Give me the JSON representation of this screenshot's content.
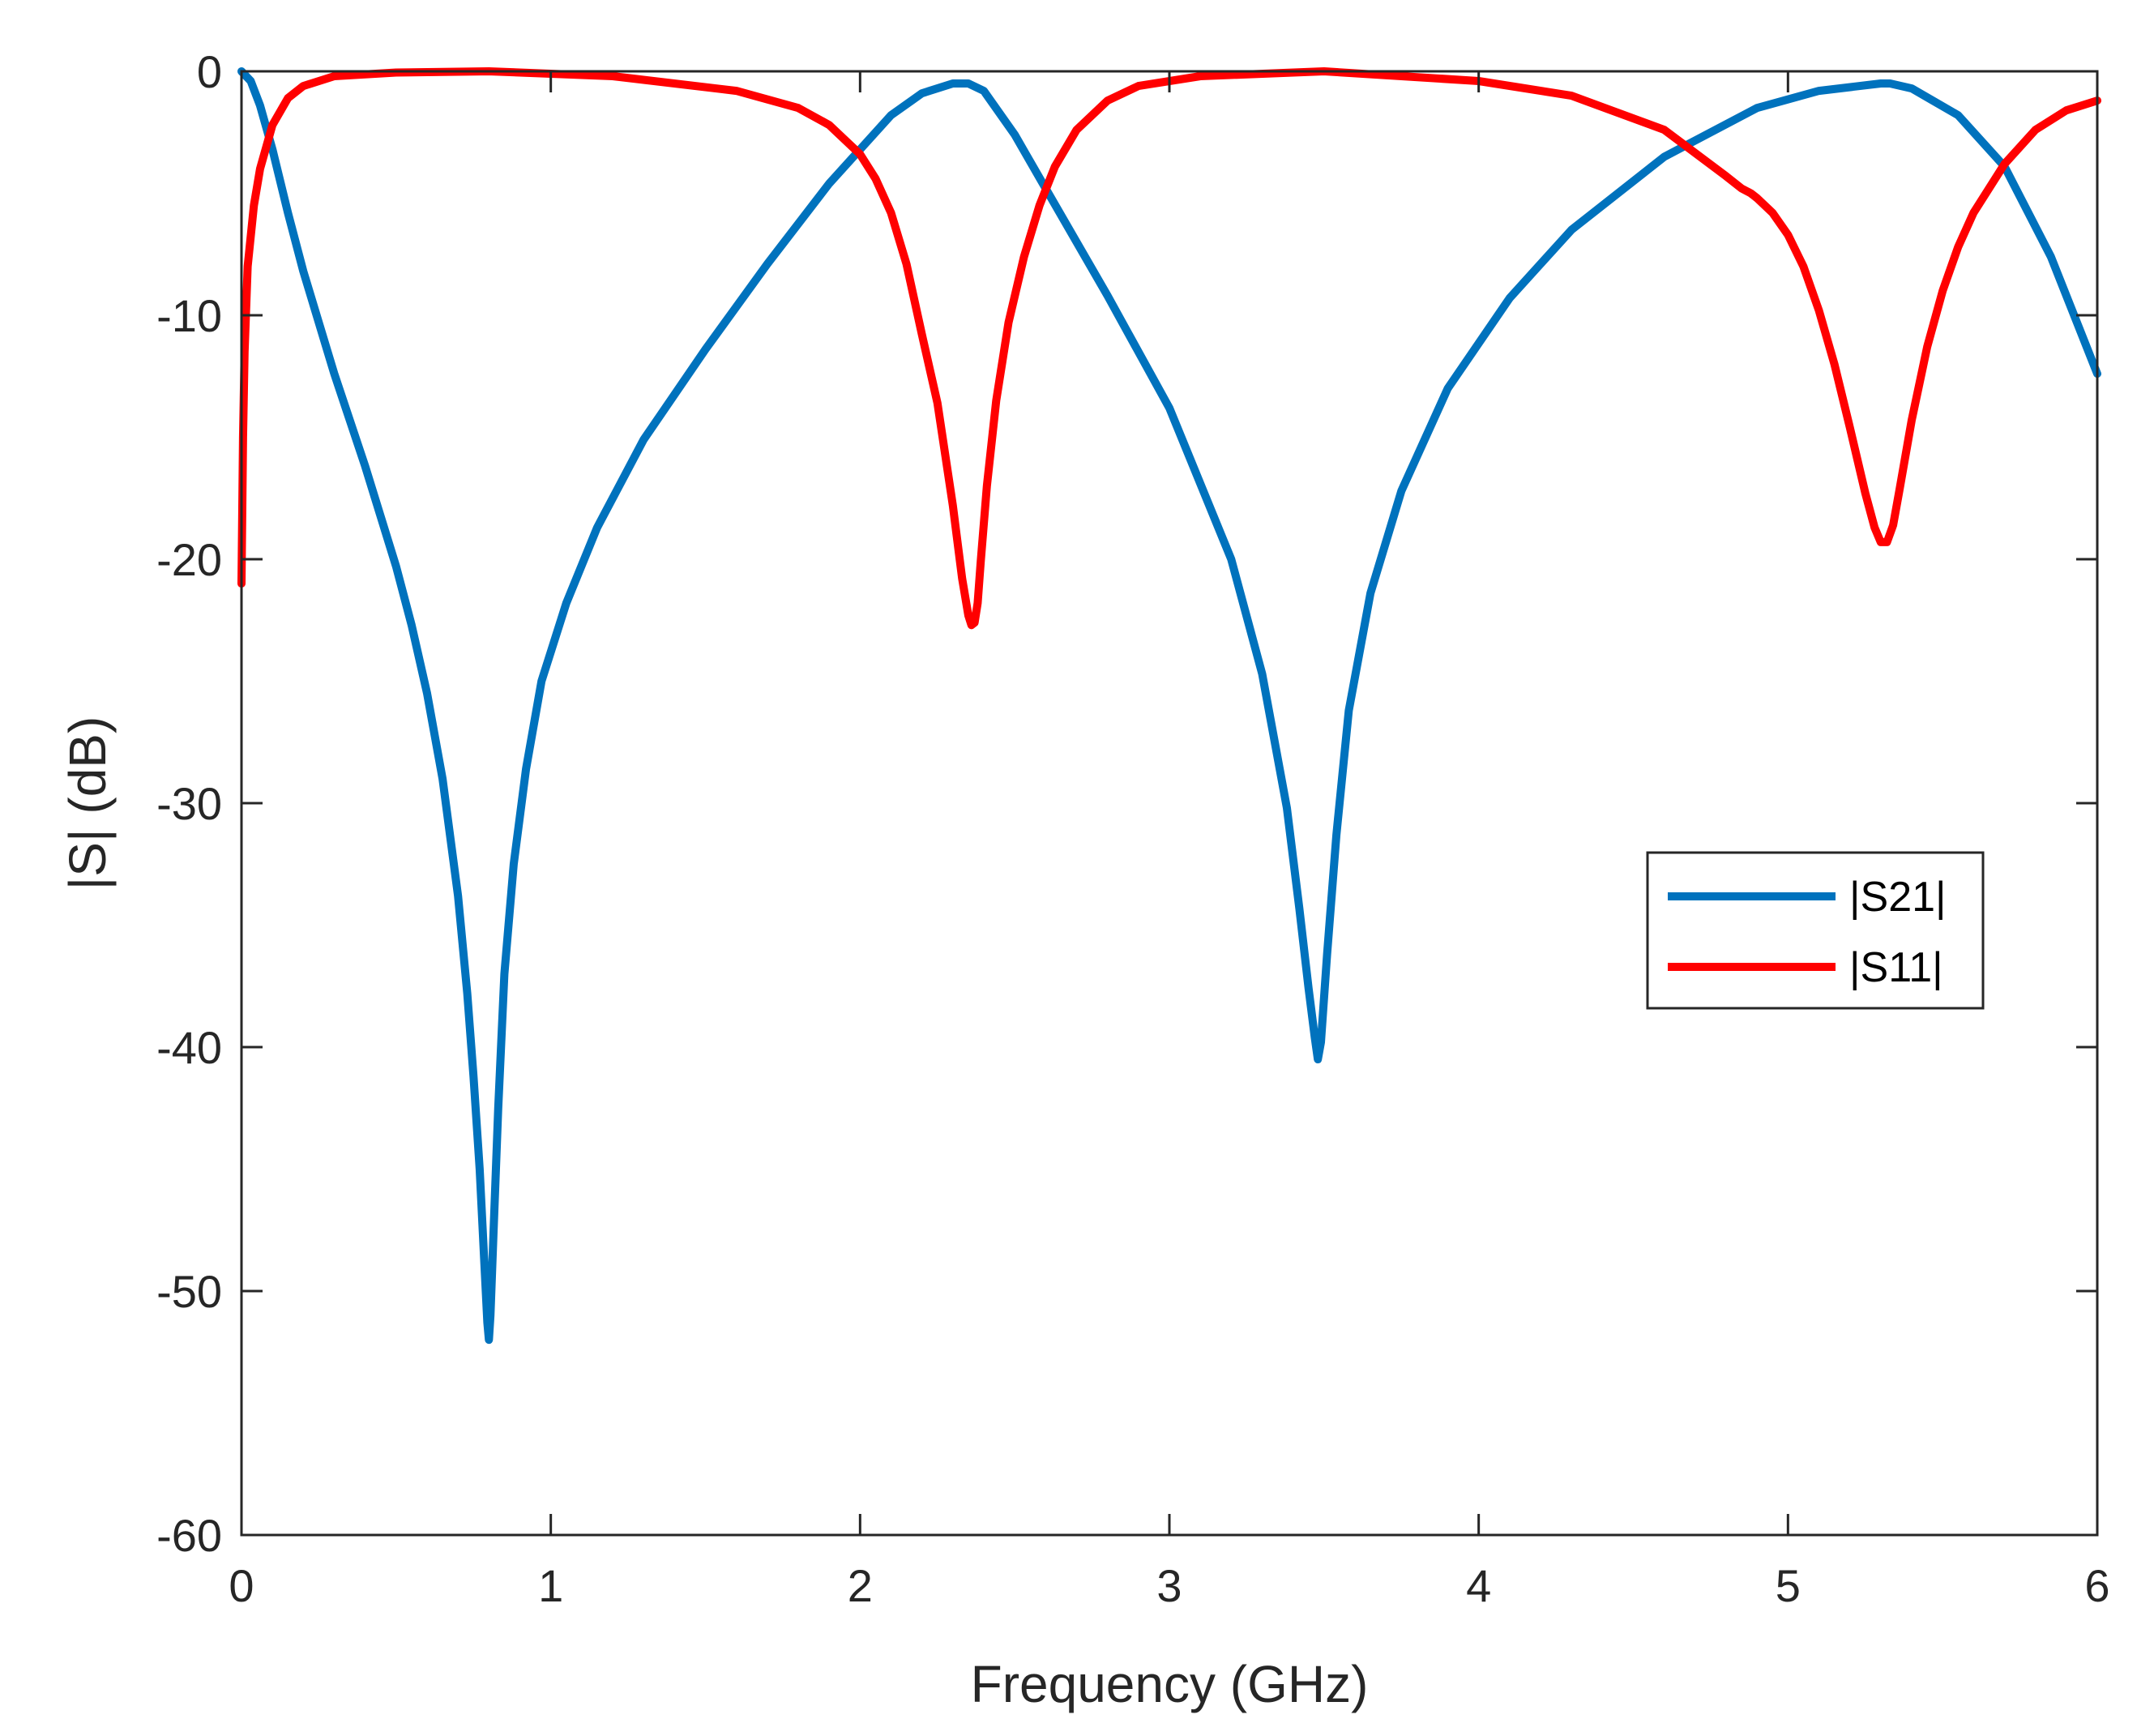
{
  "chart_data": {
    "type": "line",
    "title": "",
    "xlabel": "Frequency (GHz)",
    "ylabel": "|S| (dB)",
    "xlim": [
      0,
      6
    ],
    "ylim": [
      -60,
      0
    ],
    "xticks": [
      0,
      1,
      2,
      3,
      4,
      5,
      6
    ],
    "yticks": [
      0,
      -10,
      -20,
      -30,
      -40,
      -50,
      -60
    ],
    "grid": false,
    "legend_position": "right-center",
    "series": [
      {
        "name": "|S21|",
        "color": "#0072BD",
        "x": [
          0.0,
          0.03,
          0.06,
          0.1,
          0.15,
          0.2,
          0.3,
          0.4,
          0.5,
          0.55,
          0.6,
          0.65,
          0.7,
          0.73,
          0.75,
          0.77,
          0.785,
          0.795,
          0.8,
          0.805,
          0.815,
          0.83,
          0.85,
          0.88,
          0.92,
          0.97,
          1.05,
          1.15,
          1.3,
          1.5,
          1.7,
          1.9,
          2.1,
          2.2,
          2.3,
          2.35,
          2.4,
          2.5,
          2.6,
          2.8,
          3.0,
          3.2,
          3.3,
          3.38,
          3.42,
          3.45,
          3.47,
          3.48,
          3.49,
          3.51,
          3.54,
          3.58,
          3.65,
          3.75,
          3.9,
          4.1,
          4.3,
          4.6,
          4.9,
          5.1,
          5.3,
          5.33,
          5.4,
          5.55,
          5.7,
          5.85,
          6.0
        ],
        "values": [
          0.0,
          -0.4,
          -1.4,
          -3.2,
          -5.8,
          -8.2,
          -12.4,
          -16.2,
          -20.3,
          -22.7,
          -25.5,
          -29.0,
          -33.8,
          -37.8,
          -41.2,
          -45.0,
          -48.8,
          -51.3,
          -52.0,
          -51.0,
          -47.5,
          -42.5,
          -37.0,
          -32.5,
          -28.6,
          -25.0,
          -21.8,
          -18.7,
          -15.1,
          -11.4,
          -7.9,
          -4.6,
          -1.8,
          -0.9,
          -0.5,
          -0.5,
          -0.8,
          -2.6,
          -4.8,
          -9.2,
          -13.8,
          -20.0,
          -24.7,
          -30.2,
          -34.3,
          -37.6,
          -39.6,
          -40.5,
          -39.8,
          -36.2,
          -31.3,
          -26.2,
          -21.4,
          -17.2,
          -13.0,
          -9.3,
          -6.5,
          -3.5,
          -1.5,
          -0.8,
          -0.5,
          -0.5,
          -0.7,
          -1.8,
          -3.9,
          -7.6,
          -12.4
        ]
      },
      {
        "name": "|S11|",
        "color": "#FF0000",
        "x": [
          0.0,
          0.005,
          0.01,
          0.02,
          0.04,
          0.06,
          0.1,
          0.15,
          0.2,
          0.3,
          0.5,
          0.8,
          1.2,
          1.6,
          1.8,
          1.9,
          2.0,
          2.05,
          2.1,
          2.15,
          2.2,
          2.25,
          2.3,
          2.33,
          2.35,
          2.36,
          2.37,
          2.38,
          2.39,
          2.41,
          2.44,
          2.48,
          2.53,
          2.58,
          2.63,
          2.7,
          2.8,
          2.9,
          3.1,
          3.5,
          4.0,
          4.3,
          4.6,
          4.8,
          4.85,
          4.88,
          4.9,
          4.95,
          5.0,
          5.05,
          5.1,
          5.15,
          5.2,
          5.25,
          5.28,
          5.3,
          5.32,
          5.34,
          5.36,
          5.4,
          5.45,
          5.5,
          5.55,
          5.6,
          5.7,
          5.8,
          5.9,
          6.0
        ],
        "values": [
          -21.0,
          -15.0,
          -11.5,
          -8.0,
          -5.5,
          -4.0,
          -2.2,
          -1.1,
          -0.6,
          -0.2,
          -0.05,
          0.0,
          -0.2,
          -0.8,
          -1.5,
          -2.2,
          -3.4,
          -4.4,
          -5.8,
          -7.9,
          -10.8,
          -13.6,
          -17.8,
          -20.8,
          -22.3,
          -22.7,
          -22.6,
          -21.8,
          -20.1,
          -17.0,
          -13.5,
          -10.3,
          -7.6,
          -5.5,
          -3.9,
          -2.4,
          -1.2,
          -0.6,
          -0.2,
          0.0,
          -0.4,
          -1.0,
          -2.4,
          -4.3,
          -4.8,
          -5.0,
          -5.2,
          -5.8,
          -6.7,
          -8.0,
          -9.8,
          -12.0,
          -14.6,
          -17.3,
          -18.7,
          -19.3,
          -19.3,
          -18.6,
          -17.2,
          -14.3,
          -11.3,
          -9.0,
          -7.2,
          -5.8,
          -3.8,
          -2.4,
          -1.6,
          -1.2
        ]
      }
    ]
  }
}
